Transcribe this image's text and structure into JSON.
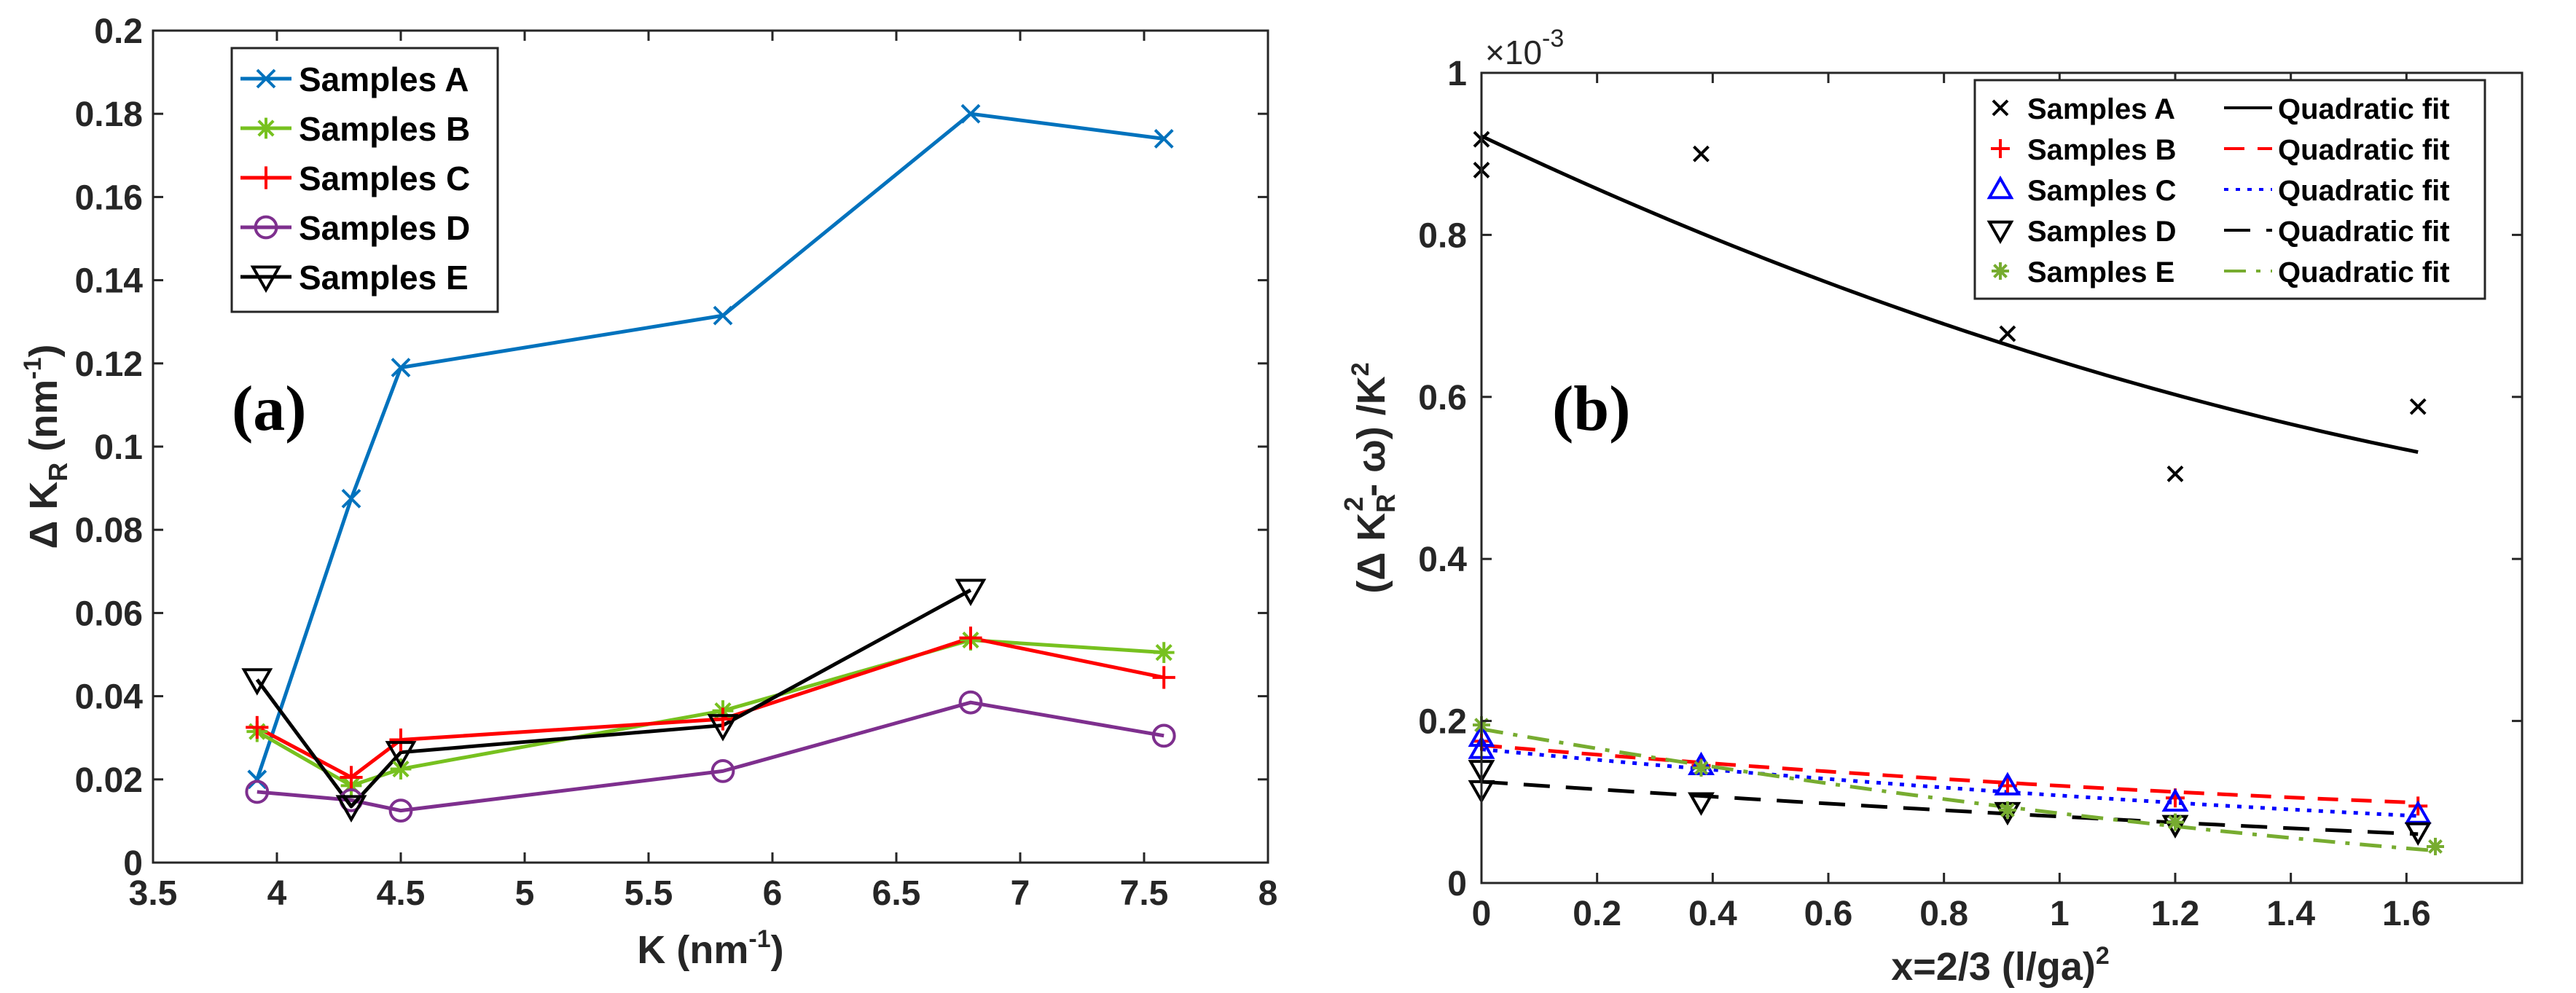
{
  "chart_data": [
    {
      "panel": "(a)",
      "type": "line",
      "xlabel": "K (nm",
      "xlabel_sup": "-1",
      "xlabel_close": ")",
      "ylabel": "Δ K",
      "ylabel_sub": "R",
      "ylabel_unit": " (nm",
      "ylabel_sup": "-1",
      "ylabel_close": ")",
      "xlim": [
        3.5,
        8
      ],
      "ylim": [
        0,
        0.2
      ],
      "xticks": [
        "3.5",
        "4",
        "4.5",
        "5",
        "5.5",
        "6",
        "6.5",
        "7",
        "7.5",
        "8"
      ],
      "yticks": [
        "0",
        "0.02",
        "0.04",
        "0.06",
        "0.08",
        "0.1",
        "0.12",
        "0.14",
        "0.16",
        "0.18",
        "0.2"
      ],
      "legend_position": "top-left",
      "series": [
        {
          "name": "Samples A",
          "color": "#0072BD",
          "marker": "x",
          "x": [
            3.92,
            4.3,
            4.5,
            5.8,
            6.8,
            7.58
          ],
          "y": [
            0.02,
            0.0875,
            0.119,
            0.1315,
            0.18,
            0.174
          ]
        },
        {
          "name": "Samples B",
          "color": "#77C11F",
          "marker": "star",
          "x": [
            3.92,
            4.3,
            4.5,
            5.8,
            6.8,
            7.58
          ],
          "y": [
            0.0315,
            0.0185,
            0.0225,
            0.0365,
            0.0535,
            0.0505
          ]
        },
        {
          "name": "Samples C",
          "color": "#FF0000",
          "marker": "plus",
          "x": [
            3.92,
            4.3,
            4.5,
            5.8,
            6.8,
            7.58
          ],
          "y": [
            0.0325,
            0.0205,
            0.0295,
            0.0345,
            0.054,
            0.0445
          ]
        },
        {
          "name": "Samples D",
          "color": "#7E2F8E",
          "marker": "circle",
          "x": [
            3.92,
            4.3,
            4.5,
            5.8,
            6.8,
            7.58
          ],
          "y": [
            0.017,
            0.015,
            0.0125,
            0.022,
            0.0385,
            0.0305
          ]
        },
        {
          "name": "Samples E",
          "color": "#000000",
          "marker": "triangle-down",
          "x": [
            3.92,
            4.3,
            4.5,
            5.8,
            6.8
          ],
          "y": [
            0.044,
            0.0135,
            0.0265,
            0.033,
            0.0655
          ]
        }
      ]
    },
    {
      "panel": "(b)",
      "type": "scatter",
      "xlabel": "x=2/3 (l/ga)",
      "xlabel_sup": "2",
      "ylabel_pre": "(Δ K",
      "ylabel_sub": "R",
      "ylabel_sup": "2",
      "ylabel_post": "- ω) /K",
      "ylabel_sup2": "2",
      "exponent_base": "×10",
      "exponent_power": "-3",
      "xlim": [
        0,
        1.8
      ],
      "ylim": [
        0,
        1
      ],
      "xticks": [
        "0",
        "0.2",
        "0.4",
        "0.6",
        "0.8",
        "1",
        "1.2",
        "1.4",
        "1.6"
      ],
      "yticks": [
        "0",
        "0.2",
        "0.4",
        "0.6",
        "0.8",
        "1"
      ],
      "legend_position": "top-right",
      "series": [
        {
          "name": "Samples A",
          "color": "#000000",
          "marker": "x",
          "x": [
            0,
            0,
            0.38,
            0.91,
            1.2,
            1.62
          ],
          "y": [
            0.88,
            0.918,
            0.9,
            0.678,
            0.505,
            0.588
          ],
          "fit_label": "Quadratic fit",
          "fit_style": "solid",
          "fit_color": "#000000",
          "fit": {
            "x0": 0,
            "x1": 1.62,
            "a": 0.06,
            "b": -0.338,
            "c": 0.922
          }
        },
        {
          "name": "Samples B",
          "color": "#FF0000",
          "marker": "plus",
          "x": [
            0,
            0.38,
            0.91,
            1.2,
            1.62
          ],
          "y": [
            0.175,
            0.145,
            0.12,
            0.105,
            0.095
          ],
          "fit_label": "Quadratic fit",
          "fit_style": "dashed",
          "fit_color": "#FF0000",
          "fit": {
            "x0": 0,
            "x1": 1.62,
            "a": 0.01,
            "b": -0.06,
            "c": 0.17
          }
        },
        {
          "name": "Samples C",
          "color": "#0000FF",
          "marker": "triangle-up",
          "x": [
            0,
            0,
            0.38,
            0.91,
            1.2,
            1.62
          ],
          "y": [
            0.165,
            0.18,
            0.145,
            0.12,
            0.1,
            0.085
          ],
          "fit_label": "Quadratic fit",
          "fit_style": "dotted",
          "fit_color": "#0000FF",
          "fit": {
            "x0": 0,
            "x1": 1.62,
            "a": 0.01,
            "b": -0.067,
            "c": 0.165
          }
        },
        {
          "name": "Samples D",
          "color": "#000000",
          "marker": "triangle-down",
          "x": [
            0,
            0,
            0.38,
            0.91,
            1.2,
            1.62
          ],
          "y": [
            0.14,
            0.115,
            0.1,
            0.088,
            0.072,
            0.063
          ],
          "fit_label": "Quadratic fit",
          "fit_style": "dashed-long",
          "fit_color": "#000000",
          "fit": {
            "x0": 0,
            "x1": 1.62,
            "a": 0.005,
            "b": -0.048,
            "c": 0.125
          }
        },
        {
          "name": "Samples E",
          "color": "#77AC30",
          "marker": "star",
          "x": [
            0,
            0.38,
            0.91,
            1.2,
            1.65
          ],
          "y": [
            0.195,
            0.142,
            0.09,
            0.075,
            0.045
          ],
          "fit_label": "Quadratic fit",
          "fit_style": "dashdot",
          "fit_color": "#77AC30",
          "fit": {
            "x0": 0,
            "x1": 1.65,
            "a": 0.02,
            "b": -0.124,
            "c": 0.19
          }
        }
      ]
    }
  ]
}
